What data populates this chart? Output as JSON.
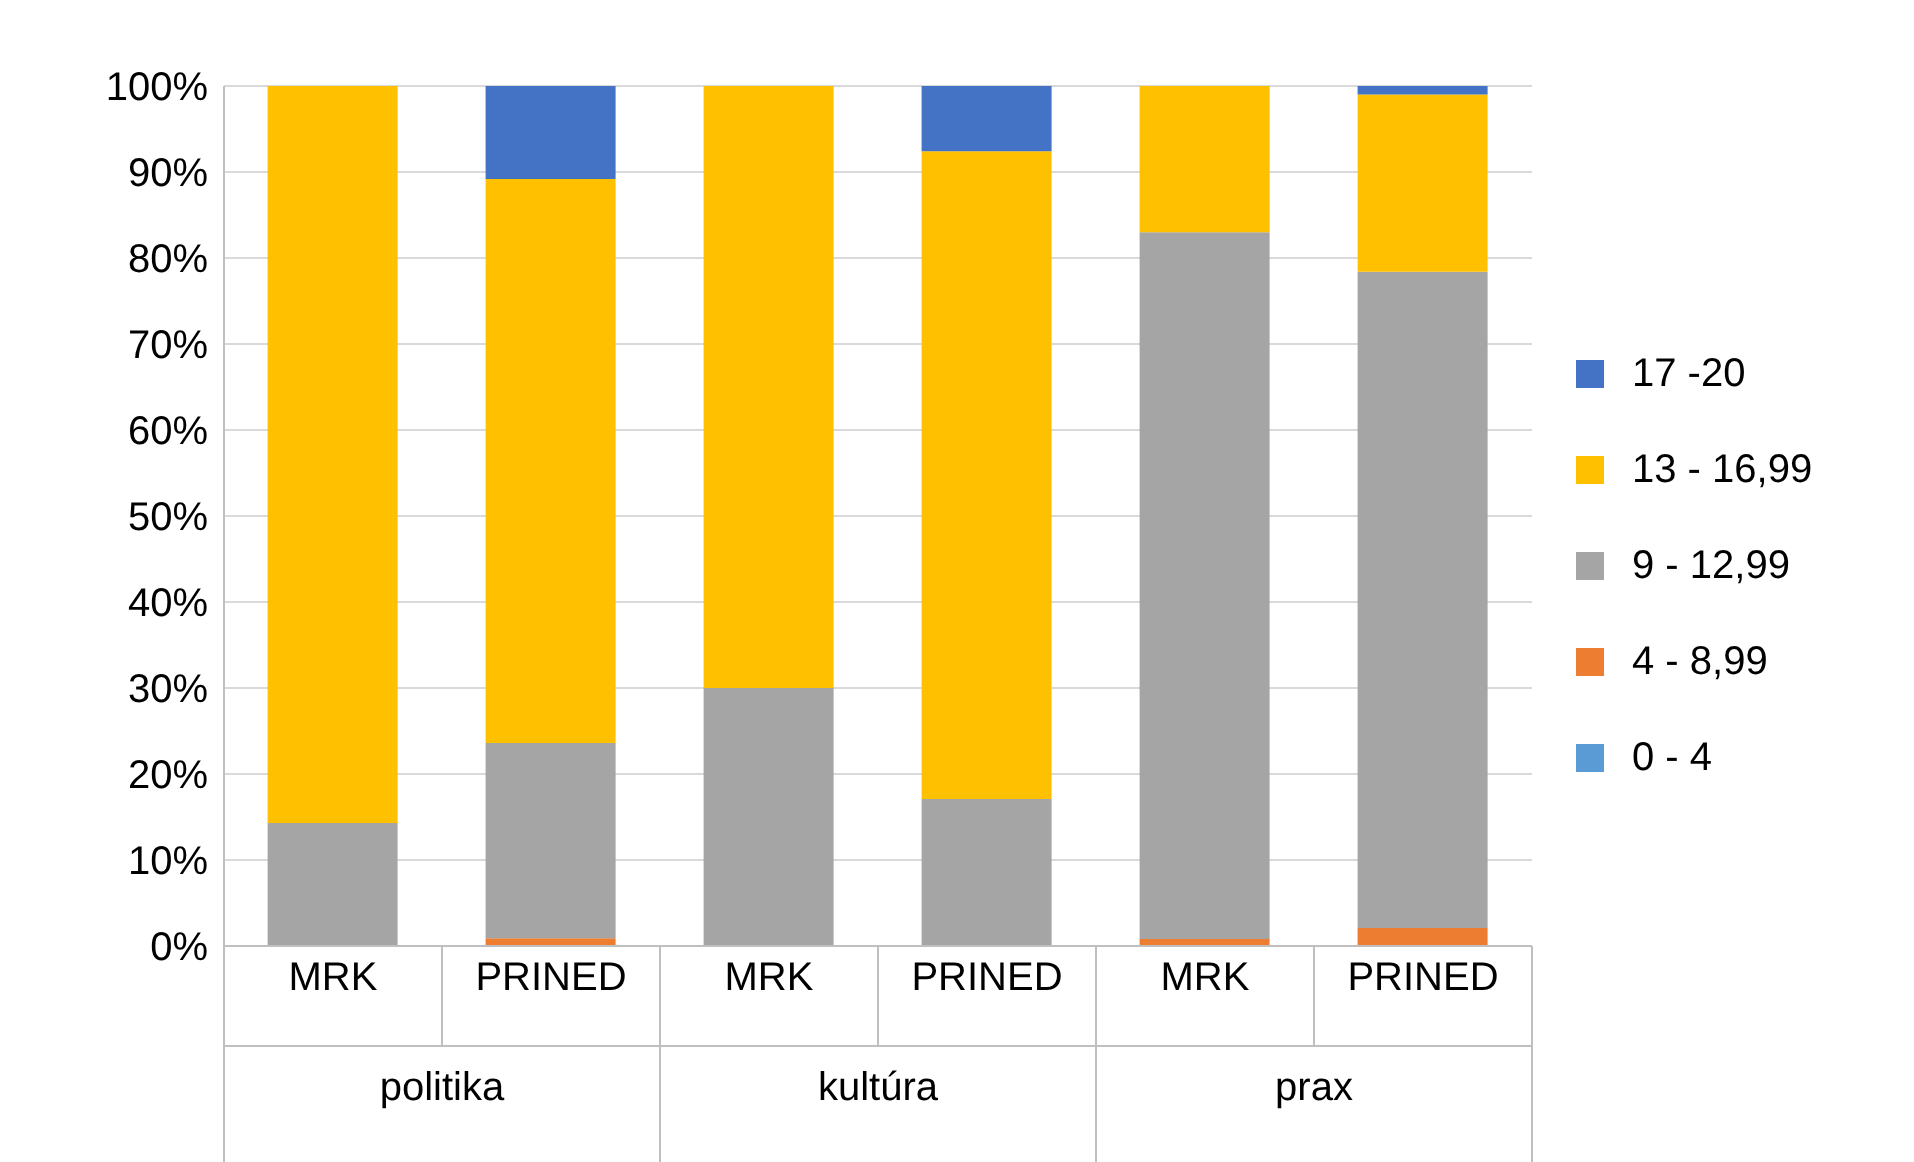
{
  "chart_data": {
    "type": "bar",
    "stacked": true,
    "categories": [
      "MRK",
      "PRINED",
      "MRK",
      "PRINED",
      "MRK",
      "PRINED"
    ],
    "series": [
      {
        "name": "0 - 4",
        "color": "#5b9bd5",
        "values": [
          0,
          0,
          0,
          0,
          0,
          0
        ]
      },
      {
        "name": "4 - 8,99",
        "color": "#ed7d31",
        "values": [
          0,
          0.9,
          0,
          0,
          0.8,
          2.1
        ]
      },
      {
        "name": "9 - 12,99",
        "color": "#a5a5a5",
        "values": [
          14.3,
          22.7,
          30,
          17.1,
          82.2,
          76.3
        ]
      },
      {
        "name": "13 - 16,99",
        "color": "#ffc000",
        "values": [
          85.7,
          65.6,
          70,
          75.3,
          17,
          20.6
        ]
      },
      {
        "name": "17 -20",
        "color": "#4472c4",
        "values": [
          0,
          10.8,
          0,
          7.6,
          0,
          1
        ]
      }
    ],
    "ylim": [
      0,
      100
    ],
    "yticks": [
      {
        "value": 0,
        "label": "0%"
      },
      {
        "value": 10,
        "label": "10%"
      },
      {
        "value": 20,
        "label": "20%"
      },
      {
        "value": 30,
        "label": "30%"
      },
      {
        "value": 40,
        "label": "40%"
      },
      {
        "value": 50,
        "label": "50%"
      },
      {
        "value": 60,
        "label": "60%"
      },
      {
        "value": 70,
        "label": "70%"
      },
      {
        "value": 80,
        "label": "80%"
      },
      {
        "value": 90,
        "label": "90%"
      },
      {
        "value": 100,
        "label": "100%"
      }
    ],
    "grid": "y",
    "legend": "right",
    "annotations": [
      "politika",
      "kultúra",
      "prax"
    ]
  }
}
